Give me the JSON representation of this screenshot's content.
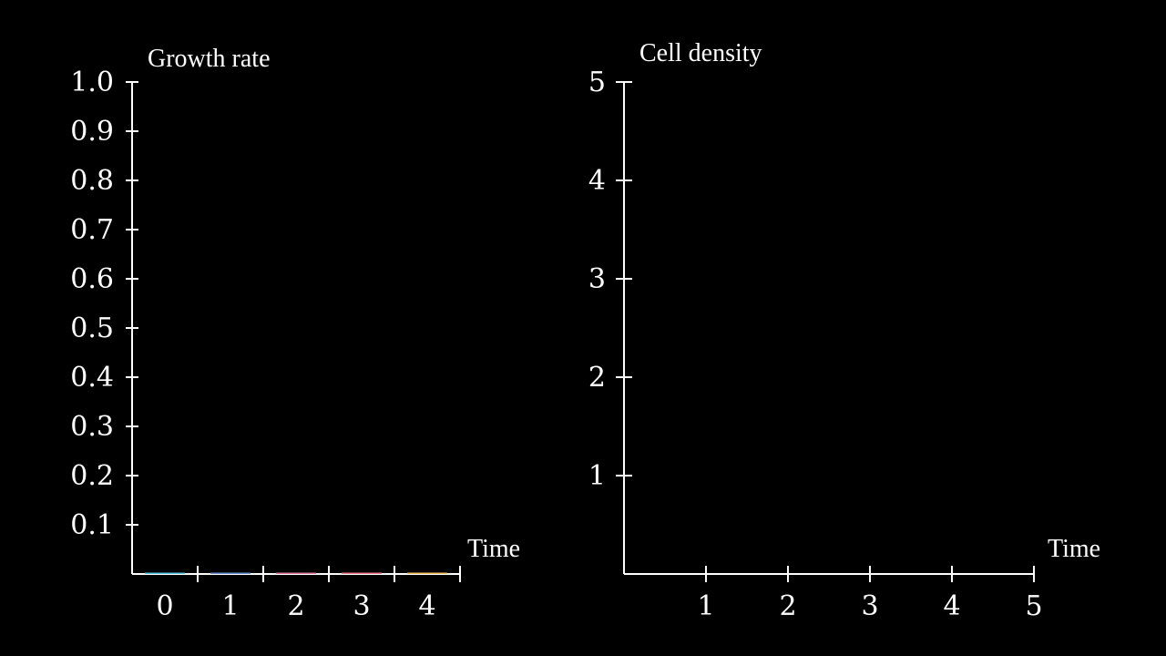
{
  "chart_data": [
    {
      "type": "bar",
      "ylabel": "Growth rate",
      "xlabel": "Time",
      "categories": [
        "0",
        "1",
        "2",
        "3",
        "4"
      ],
      "values": [
        0,
        0,
        0,
        0,
        0
      ],
      "bar_colors": [
        "#58c4dd",
        "#6b8fd4",
        "#e07a9b",
        "#f07a8a",
        "#f0c060"
      ],
      "yticks": [
        "0.1",
        "0.2",
        "0.3",
        "0.4",
        "0.5",
        "0.6",
        "0.7",
        "0.8",
        "0.9",
        "1.0"
      ],
      "ylim": [
        0,
        1.0
      ],
      "grid": false
    },
    {
      "type": "line",
      "ylabel": "Cell density",
      "xlabel": "Time",
      "xticks": [
        "1",
        "2",
        "3",
        "4",
        "5"
      ],
      "yticks": [
        "1",
        "2",
        "3",
        "4",
        "5"
      ],
      "xlim": [
        0,
        5
      ],
      "ylim": [
        0,
        5
      ],
      "series": [],
      "grid": false
    }
  ]
}
